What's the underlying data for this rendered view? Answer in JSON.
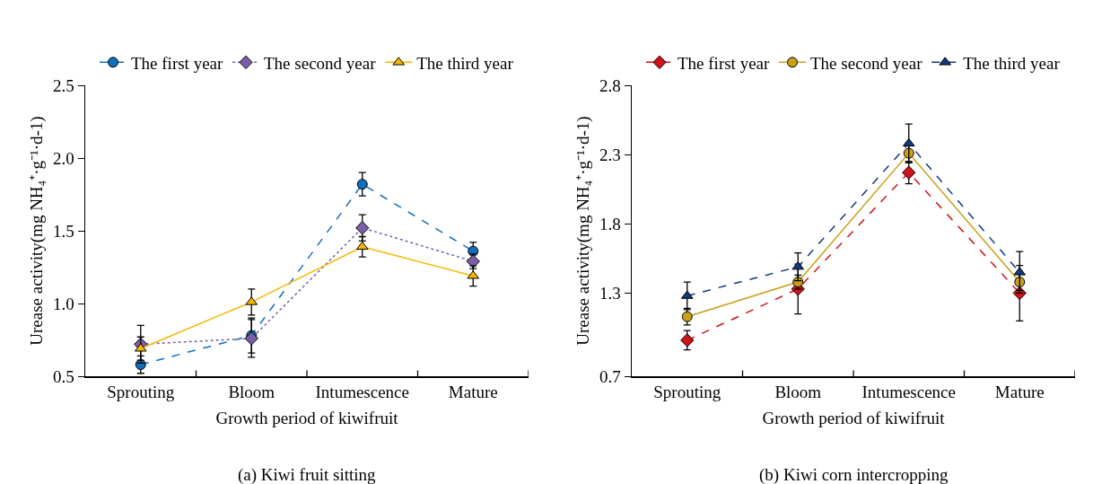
{
  "chart_data": [
    {
      "type": "line",
      "annotations": [
        "(a) Kiwi fruit sitting"
      ],
      "xlabel": "Growth period of kiwifruit",
      "ylabel": "Urease activity(mg NH₄⁺·g⁻¹·d-1)",
      "categories": [
        "Sprouting",
        "Bloom",
        "Intumescence",
        "Mature"
      ],
      "ylim": [
        0.5,
        2.5
      ],
      "yticks": [
        {
          "value": 0.5,
          "label": "0.5"
        },
        {
          "value": 1,
          "label": "1.0"
        },
        {
          "value": 1.5,
          "label": "1.5"
        },
        {
          "value": 2,
          "label": "2.0"
        },
        {
          "value": 2.5,
          "label": "2.5"
        }
      ],
      "grid": false,
      "legend": "top",
      "series": [
        {
          "name": "The first year",
          "color": "#0f6fbf",
          "values": [
            0.58,
            0.78,
            1.82,
            1.36
          ],
          "errors": [
            0.06,
            0.12,
            0.08,
            0.06
          ],
          "marker": "circle",
          "line_style": "dashed"
        },
        {
          "name": "The second year",
          "color": "#7b5ea7",
          "values": [
            0.72,
            0.76,
            1.52,
            1.29
          ],
          "errors": [
            0.13,
            0.13,
            0.09,
            0.05
          ],
          "marker": "diamond",
          "line_style": "dotted"
        },
        {
          "name": "The third year",
          "color": "#f5b800",
          "values": [
            0.69,
            1.01,
            1.39,
            1.19
          ],
          "errors": [
            0.08,
            0.09,
            0.07,
            0.07
          ],
          "marker": "triangle",
          "line_style": "solid"
        }
      ]
    },
    {
      "type": "line",
      "annotations": [
        "(b) Kiwi corn intercropping"
      ],
      "xlabel": "Growth period of kiwifruit",
      "ylabel": "Urease activity(mg NH₄⁺·g⁻¹·d-1)",
      "categories": [
        "Sprouting",
        "Bloom",
        "Intumescence",
        "Mature"
      ],
      "ylim": [
        0.7,
        2.8
      ],
      "yticks": [
        {
          "value": 0.7,
          "label": "0.7"
        },
        {
          "value": 1.3,
          "label": "1.3"
        },
        {
          "value": 1.8,
          "label": "1.8"
        },
        {
          "value": 2.3,
          "label": "2.3"
        },
        {
          "value": 2.8,
          "label": "2.8"
        }
      ],
      "grid": false,
      "legend": "top",
      "series": [
        {
          "name": "The first year",
          "color": "#d0121b",
          "values": [
            0.96,
            1.33,
            2.17,
            1.3
          ],
          "errors": [
            0.07,
            0.18,
            0.08,
            0.2
          ],
          "marker": "diamond",
          "line_style": "dashed"
        },
        {
          "name": "The second year",
          "color": "#c9a018",
          "values": [
            1.13,
            1.38,
            2.31,
            1.38
          ],
          "errors": [
            0.06,
            0.05,
            0.06,
            0.06
          ],
          "marker": "circle",
          "line_style": "solid"
        },
        {
          "name": "The third year",
          "color": "#123a7a",
          "values": [
            1.28,
            1.49,
            2.38,
            1.45
          ],
          "errors": [
            0.1,
            0.1,
            0.14,
            0.15
          ],
          "marker": "triangle",
          "line_style": "dashed"
        }
      ]
    }
  ]
}
